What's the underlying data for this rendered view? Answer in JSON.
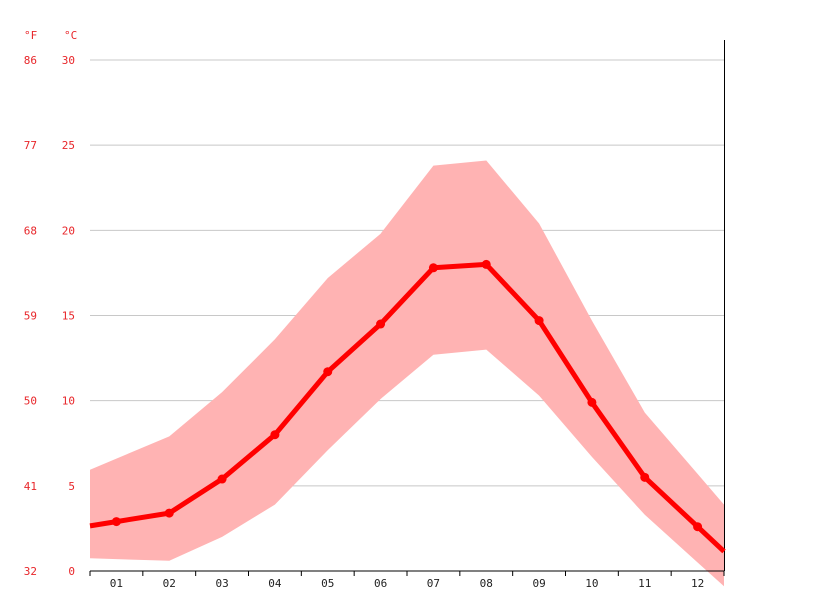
{
  "chart_data": {
    "type": "line",
    "units": {
      "fahrenheit": "°F",
      "celsius": "°C"
    },
    "categories": [
      "01",
      "02",
      "03",
      "04",
      "05",
      "06",
      "07",
      "08",
      "09",
      "10",
      "11",
      "12"
    ],
    "y_ticks_c": [
      "30",
      "25",
      "20",
      "15",
      "10",
      "5",
      "0"
    ],
    "y_ticks_f": [
      "86",
      "77",
      "68",
      "59",
      "50",
      "41",
      "32"
    ],
    "ylim": [
      0,
      30
    ],
    "grid": true,
    "series": [
      {
        "role": "average",
        "values": [
          2.9,
          3.4,
          5.4,
          8.0,
          11.7,
          14.5,
          17.8,
          18.0,
          14.7,
          9.9,
          5.5,
          2.6
        ]
      },
      {
        "role": "max",
        "values": [
          6.6,
          7.9,
          10.5,
          13.6,
          17.2,
          19.8,
          23.8,
          24.1,
          20.4,
          14.7,
          9.3,
          5.7
        ]
      },
      {
        "role": "min",
        "values": [
          0.7,
          0.6,
          2.0,
          3.9,
          7.1,
          10.1,
          12.7,
          13.0,
          10.3,
          6.7,
          3.3,
          0.5
        ]
      }
    ],
    "colors": {
      "line": "#ff0000",
      "band": "#ffb3b3",
      "grid": "#c8c8c8",
      "tick_text": "#e8262a",
      "axis": "#000000"
    }
  }
}
